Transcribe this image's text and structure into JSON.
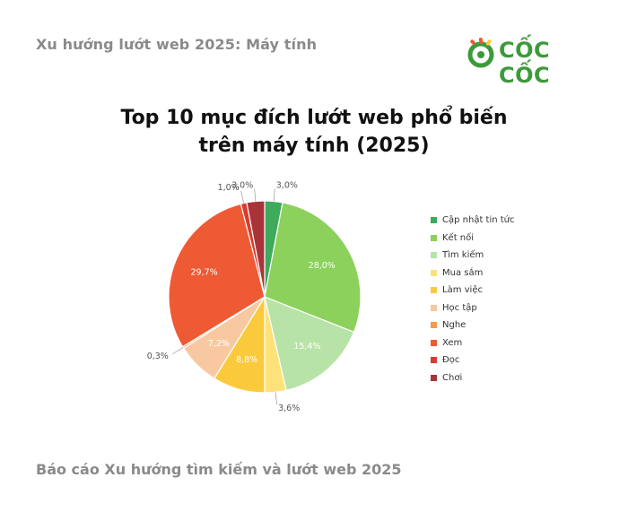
{
  "header": {
    "title": "Xu hướng lướt web 2025: Máy tính"
  },
  "brand": {
    "name": "CỐC CỐC",
    "logo_icon": "coc-coc-logo-icon",
    "color": "#3d9a3a"
  },
  "chart_data": {
    "type": "pie",
    "title_lines": [
      "Top 10 mục đích lướt web phổ biến",
      "trên máy tính (2025)"
    ],
    "legend_position": "right",
    "slices": [
      {
        "label": "Cập nhật tin tức",
        "value": 3.0,
        "display": "3,0%",
        "color": "#3daa5c"
      },
      {
        "label": "Kết nối",
        "value": 28.0,
        "display": "28,0%",
        "color": "#8bd15c"
      },
      {
        "label": "Tìm kiếm",
        "value": 15.4,
        "display": "15,4%",
        "color": "#b8e3a6"
      },
      {
        "label": "Mua sắm",
        "value": 3.6,
        "display": "3,6%",
        "color": "#fde27a"
      },
      {
        "label": "Làm việc",
        "value": 8.8,
        "display": "8,8%",
        "color": "#fbca3c"
      },
      {
        "label": "Học tập",
        "value": 7.2,
        "display": "7,2%",
        "color": "#f8c9a0"
      },
      {
        "label": "Nghe",
        "value": 0.3,
        "display": "0,3%",
        "color": "#f49a4a"
      },
      {
        "label": "Xem",
        "value": 29.7,
        "display": "29,7%",
        "color": "#ee5a33"
      },
      {
        "label": "Đọc",
        "value": 1.0,
        "display": "1,0%",
        "color": "#d83b2e"
      },
      {
        "label": "Chơi",
        "value": 3.0,
        "display": "3,0%",
        "color": "#a8343a"
      }
    ]
  },
  "footer": {
    "text": "Báo cáo Xu hướng tìm kiếm và lướt web 2025"
  }
}
